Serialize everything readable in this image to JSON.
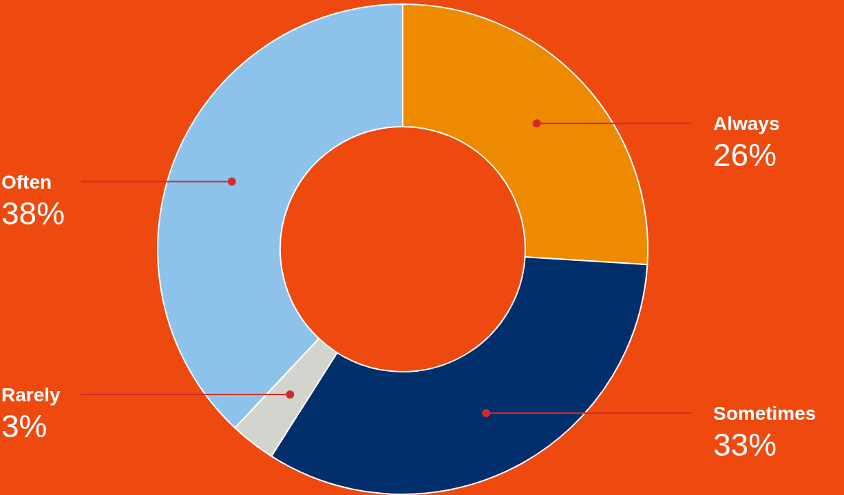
{
  "chart_data": {
    "type": "donut",
    "categories": [
      "Always",
      "Sometimes",
      "Rarely",
      "Often"
    ],
    "values": [
      26,
      33,
      3,
      38
    ],
    "colors": [
      "#ee8a00",
      "#002f6c",
      "#d4d4cf",
      "#8dc3eb"
    ],
    "value_labels": [
      "26%",
      "33%",
      "3%",
      "38%"
    ]
  }
}
